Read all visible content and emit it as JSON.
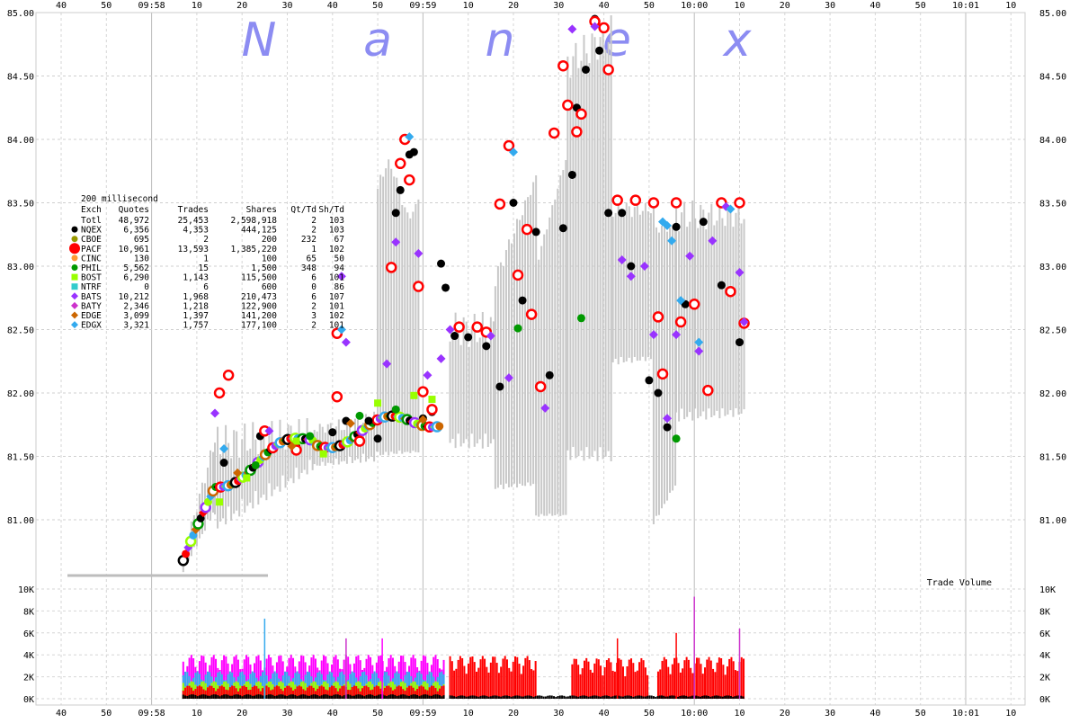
{
  "chart_data": [
    {
      "type": "scatter",
      "watermark": [
        "N",
        "a",
        "n",
        "e",
        "x"
      ],
      "x_ticks_top": [
        "40",
        "50",
        "09:58",
        "10",
        "20",
        "30",
        "40",
        "50",
        "09:59",
        "10",
        "20",
        "30",
        "40",
        "50",
        "10:00",
        "10",
        "20",
        "30",
        "40",
        "50",
        "10:01",
        "10"
      ],
      "y_ticks": [
        "85.00",
        "84.50",
        "84.00",
        "83.50",
        "83.00",
        "82.50",
        "82.00",
        "81.50",
        "81.00"
      ],
      "ylim": [
        80.5,
        85.0
      ],
      "grid": true,
      "legend": {
        "title": "200 millisecond",
        "columns": [
          "Exch",
          "Quotes",
          "Trades",
          "Shares",
          "Qt/Td",
          "Sh/Td"
        ],
        "rows": [
          {
            "exch": "Totl",
            "quotes": "48,972",
            "trades": "25,453",
            "shares": "2,598,918",
            "qt_td": "2",
            "sh_td": "103",
            "color": "",
            "marker": ""
          },
          {
            "exch": "NQEX",
            "quotes": "6,356",
            "trades": "4,353",
            "shares": "444,125",
            "qt_td": "2",
            "sh_td": "103",
            "color": "#000000",
            "marker": "circle"
          },
          {
            "exch": "CBOE",
            "quotes": "695",
            "trades": "2",
            "shares": "200",
            "qt_td": "232",
            "sh_td": "67",
            "color": "#999900",
            "marker": "circle"
          },
          {
            "exch": "PACF",
            "quotes": "10,961",
            "trades": "13,593",
            "shares": "1,385,220",
            "qt_td": "1",
            "sh_td": "102",
            "color": "#ff0000",
            "marker": "bigcircle"
          },
          {
            "exch": "CINC",
            "quotes": "130",
            "trades": "1",
            "shares": "100",
            "qt_td": "65",
            "sh_td": "50",
            "color": "#ff9933",
            "marker": "circle"
          },
          {
            "exch": "PHIL",
            "quotes": "5,562",
            "trades": "15",
            "shares": "1,500",
            "qt_td": "348",
            "sh_td": "94",
            "color": "#009900",
            "marker": "circle"
          },
          {
            "exch": "BOST",
            "quotes": "6,290",
            "trades": "1,143",
            "shares": "115,500",
            "qt_td": "6",
            "sh_td": "101",
            "color": "#99ff00",
            "marker": "square"
          },
          {
            "exch": "NTRF",
            "quotes": "0",
            "trades": "6",
            "shares": "600",
            "qt_td": "0",
            "sh_td": "86",
            "color": "#33cccc",
            "marker": "square"
          },
          {
            "exch": "BATS",
            "quotes": "10,212",
            "trades": "1,968",
            "shares": "210,473",
            "qt_td": "6",
            "sh_td": "107",
            "color": "#9933ff",
            "marker": "diamond"
          },
          {
            "exch": "BATY",
            "quotes": "2,346",
            "trades": "1,218",
            "shares": "122,900",
            "qt_td": "2",
            "sh_td": "101",
            "color": "#cc33cc",
            "marker": "diamond"
          },
          {
            "exch": "EDGE",
            "quotes": "3,099",
            "trades": "1,397",
            "shares": "141,200",
            "qt_td": "3",
            "sh_td": "102",
            "color": "#cc6600",
            "marker": "diamond"
          },
          {
            "exch": "EDGX",
            "quotes": "3,321",
            "trades": "1,757",
            "shares": "177,100",
            "qt_td": "2",
            "sh_td": "101",
            "color": "#33aaee",
            "marker": "diamond"
          }
        ]
      },
      "series": [
        {
          "name": "NQEX",
          "color": "#000000",
          "points": [
            [
              36,
              81.45
            ],
            [
              44,
              81.66
            ],
            [
              52,
              81.58
            ],
            [
              60,
              81.69
            ],
            [
              63,
              81.78
            ],
            [
              68,
              81.78
            ],
            [
              70,
              81.64
            ],
            [
              74,
              83.42
            ],
            [
              75,
              83.6
            ],
            [
              77,
              83.88
            ],
            [
              78,
              83.9
            ],
            [
              80,
              81.8
            ],
            [
              82,
              81.85
            ],
            [
              84,
              83.02
            ],
            [
              85,
              82.83
            ],
            [
              87,
              82.45
            ],
            [
              90,
              82.44
            ],
            [
              94,
              82.37
            ],
            [
              97,
              82.05
            ],
            [
              100,
              83.5
            ],
            [
              102,
              82.73
            ],
            [
              105,
              83.27
            ],
            [
              108,
              82.14
            ],
            [
              111,
              83.3
            ],
            [
              113,
              83.72
            ],
            [
              114,
              84.25
            ],
            [
              116,
              84.55
            ],
            [
              118,
              84.95
            ],
            [
              119,
              84.7
            ],
            [
              121,
              83.42
            ],
            [
              124,
              83.42
            ],
            [
              126,
              83.0
            ],
            [
              130,
              82.1
            ],
            [
              132,
              82.0
            ],
            [
              134,
              81.73
            ],
            [
              136,
              83.31
            ],
            [
              138,
              82.7
            ],
            [
              142,
              83.35
            ],
            [
              146,
              82.85
            ],
            [
              150,
              82.4
            ]
          ]
        },
        {
          "name": "PACF",
          "color": "#ff0000",
          "points": [
            [
              35,
              82.0
            ],
            [
              37,
              82.14
            ],
            [
              45,
              81.7
            ],
            [
              52,
              81.55
            ],
            [
              61,
              81.97
            ],
            [
              61,
              82.47
            ],
            [
              66,
              81.62
            ],
            [
              73,
              82.99
            ],
            [
              75,
              83.81
            ],
            [
              76,
              84.0
            ],
            [
              77,
              83.68
            ],
            [
              79,
              82.84
            ],
            [
              80,
              82.01
            ],
            [
              82,
              81.87
            ],
            [
              88,
              82.52
            ],
            [
              92,
              82.52
            ],
            [
              94,
              82.48
            ],
            [
              97,
              83.49
            ],
            [
              99,
              83.95
            ],
            [
              101,
              82.93
            ],
            [
              103,
              83.29
            ],
            [
              104,
              82.62
            ],
            [
              106,
              82.05
            ],
            [
              109,
              84.05
            ],
            [
              111,
              84.58
            ],
            [
              112,
              84.27
            ],
            [
              114,
              84.06
            ],
            [
              115,
              84.2
            ],
            [
              118,
              84.93
            ],
            [
              120,
              84.88
            ],
            [
              121,
              84.55
            ],
            [
              123,
              83.52
            ],
            [
              127,
              83.52
            ],
            [
              131,
              83.5
            ],
            [
              132,
              82.6
            ],
            [
              133,
              82.15
            ],
            [
              136,
              83.5
            ],
            [
              137,
              82.56
            ],
            [
              140,
              82.7
            ],
            [
              143,
              82.02
            ],
            [
              146,
              83.5
            ],
            [
              148,
              82.8
            ],
            [
              150,
              83.5
            ],
            [
              151,
              82.55
            ]
          ]
        },
        {
          "name": "BATS",
          "color": "#9933ff",
          "points": [
            [
              34,
              81.84
            ],
            [
              46,
              81.7
            ],
            [
              62,
              82.92
            ],
            [
              63,
              82.4
            ],
            [
              72,
              82.23
            ],
            [
              74,
              83.19
            ],
            [
              79,
              83.1
            ],
            [
              81,
              82.14
            ],
            [
              84,
              82.27
            ],
            [
              86,
              82.5
            ],
            [
              95,
              82.45
            ],
            [
              99,
              82.12
            ],
            [
              107,
              81.88
            ],
            [
              113,
              84.87
            ],
            [
              118,
              84.89
            ],
            [
              124,
              83.05
            ],
            [
              126,
              82.92
            ],
            [
              129,
              83.0
            ],
            [
              131,
              82.46
            ],
            [
              134,
              81.8
            ],
            [
              136,
              82.46
            ],
            [
              139,
              83.08
            ],
            [
              141,
              82.33
            ],
            [
              144,
              83.2
            ],
            [
              147,
              83.47
            ],
            [
              150,
              82.95
            ],
            [
              151,
              82.56
            ]
          ]
        },
        {
          "name": "EDGX",
          "color": "#33aaee",
          "points": [
            [
              36,
              81.56
            ],
            [
              62,
              82.5
            ],
            [
              77,
              84.02
            ],
            [
              100,
              83.9
            ],
            [
              133,
              83.35
            ],
            [
              134,
              83.32
            ],
            [
              135,
              83.2
            ],
            [
              137,
              82.73
            ],
            [
              141,
              82.4
            ],
            [
              148,
              83.45
            ]
          ]
        },
        {
          "name": "BOST",
          "color": "#99ff00",
          "points": [
            [
              35,
              81.14
            ],
            [
              41,
              81.33
            ],
            [
              52,
              81.62
            ],
            [
              58,
              81.52
            ],
            [
              70,
              81.92
            ],
            [
              78,
              81.98
            ],
            [
              82,
              81.95
            ]
          ]
        },
        {
          "name": "PHIL",
          "color": "#009900",
          "points": [
            [
              43,
              81.43
            ],
            [
              55,
              81.66
            ],
            [
              66,
              81.82
            ],
            [
              74,
              81.87
            ],
            [
              101,
              82.51
            ],
            [
              115,
              82.59
            ],
            [
              136,
              81.64
            ]
          ]
        },
        {
          "name": "EDGE",
          "color": "#cc6600",
          "points": [
            [
              39,
              81.37
            ],
            [
              51,
              81.58
            ],
            [
              64,
              81.76
            ],
            [
              80,
              81.79
            ]
          ]
        }
      ]
    },
    {
      "type": "bar",
      "title": "Trade Volume",
      "y_ticks": [
        "10K",
        "8K",
        "6K",
        "4K",
        "2K",
        "0K"
      ],
      "ylim": [
        0,
        10000
      ],
      "x_ticks_bottom": [
        "40",
        "50",
        "09:58",
        "10",
        "20",
        "30",
        "40",
        "50",
        "09:59",
        "10",
        "20",
        "30",
        "40",
        "50",
        "10:00",
        "10",
        "20",
        "30",
        "40",
        "50",
        "10:01",
        "10"
      ],
      "segments": [
        {
          "from_s": 27,
          "to_s": 85,
          "level": 4000,
          "color": "#ff00ff"
        },
        {
          "from_s": 27,
          "to_s": 85,
          "level": 2500,
          "color": "#33aaee"
        },
        {
          "from_s": 27,
          "to_s": 85,
          "level": 1600,
          "color": "#99ff00"
        },
        {
          "from_s": 27,
          "to_s": 85,
          "level": 1200,
          "color": "#ff0000"
        },
        {
          "from_s": 27,
          "to_s": 85,
          "level": 400,
          "color": "#000000"
        },
        {
          "from_s": 86,
          "to_s": 105,
          "level": 3900,
          "color": "#ff0000"
        },
        {
          "from_s": 113,
          "to_s": 130,
          "level": 3700,
          "color": "#ff0000"
        },
        {
          "from_s": 132,
          "to_s": 151,
          "level": 3800,
          "color": "#ff0000"
        },
        {
          "from_s": 86,
          "to_s": 151,
          "level": 300,
          "color": "#000000"
        }
      ],
      "spikes": [
        {
          "s": 45,
          "value": 7300,
          "color": "#33aaee"
        },
        {
          "s": 63,
          "value": 5500,
          "color": "#cc33cc"
        },
        {
          "s": 71,
          "value": 5500,
          "color": "#ff00ff"
        },
        {
          "s": 123,
          "value": 5500,
          "color": "#ff0000"
        },
        {
          "s": 140,
          "value": 9300,
          "color": "#cc33cc"
        },
        {
          "s": 136,
          "value": 6000,
          "color": "#ff0000"
        },
        {
          "s": 150,
          "value": 6400,
          "color": "#cc33cc"
        }
      ]
    }
  ]
}
